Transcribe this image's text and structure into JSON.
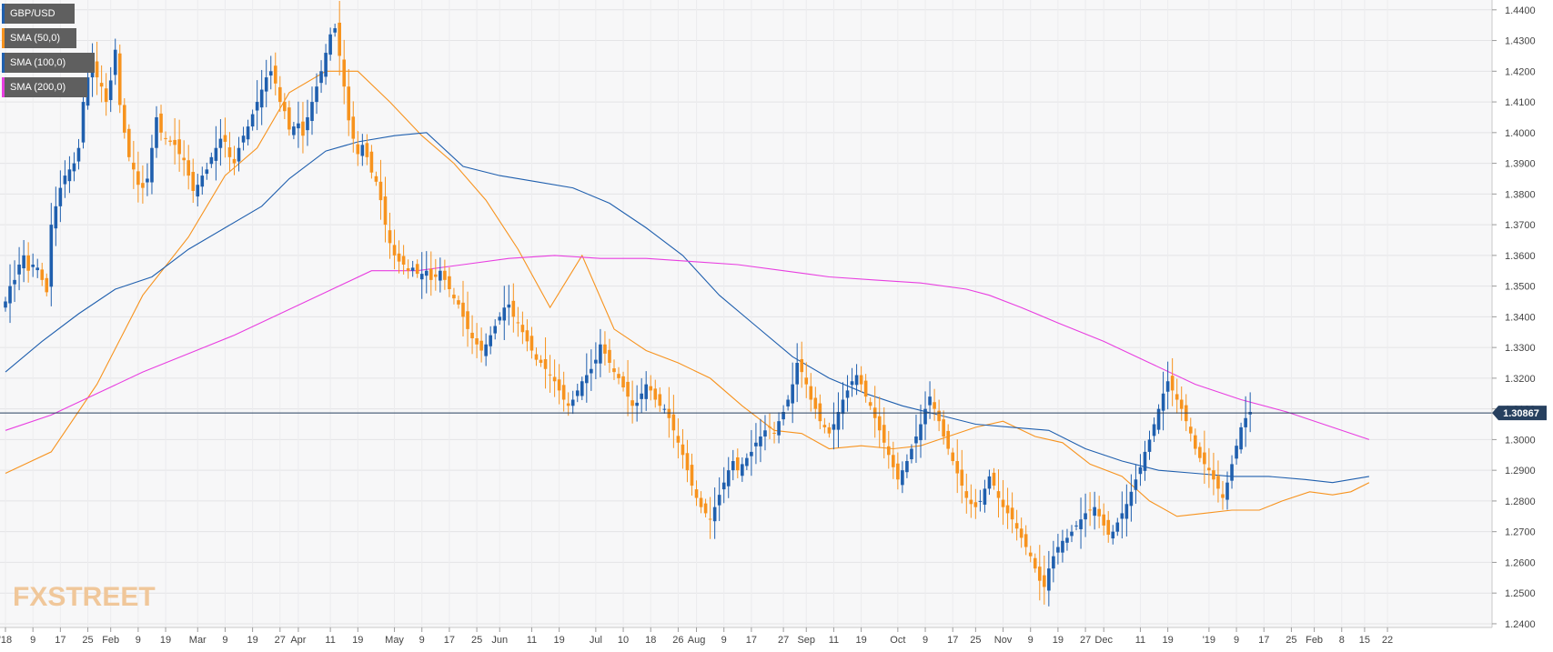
{
  "chart_data": {
    "type": "candlestick",
    "symbol": "GBP/USD",
    "ylim": [
      1.2388,
      1.4432
    ],
    "y_ticks": [
      "1.4400",
      "1.4300",
      "1.4200",
      "1.4100",
      "1.4000",
      "1.3900",
      "1.3800",
      "1.3700",
      "1.3600",
      "1.3500",
      "1.3400",
      "1.3300",
      "1.3200",
      "1.3100",
      "1.3000",
      "1.2900",
      "1.2800",
      "1.2700",
      "1.2600",
      "1.2500",
      "1.2400"
    ],
    "last_price": 1.30867,
    "last_price_label": "1.30867",
    "x_ticks": [
      {
        "i": 0,
        "label": "'18"
      },
      {
        "i": 6,
        "label": "9"
      },
      {
        "i": 12,
        "label": "17"
      },
      {
        "i": 18,
        "label": "25"
      },
      {
        "i": 23,
        "label": "Feb"
      },
      {
        "i": 29,
        "label": "9"
      },
      {
        "i": 35,
        "label": "19"
      },
      {
        "i": 42,
        "label": "Mar"
      },
      {
        "i": 48,
        "label": "9"
      },
      {
        "i": 54,
        "label": "19"
      },
      {
        "i": 60,
        "label": "27"
      },
      {
        "i": 64,
        "label": "Apr"
      },
      {
        "i": 71,
        "label": "11"
      },
      {
        "i": 77,
        "label": "19"
      },
      {
        "i": 85,
        "label": "May"
      },
      {
        "i": 91,
        "label": "9"
      },
      {
        "i": 97,
        "label": "17"
      },
      {
        "i": 103,
        "label": "25"
      },
      {
        "i": 108,
        "label": "Jun"
      },
      {
        "i": 115,
        "label": "11"
      },
      {
        "i": 121,
        "label": "19"
      },
      {
        "i": 129,
        "label": "Jul"
      },
      {
        "i": 135,
        "label": "10"
      },
      {
        "i": 141,
        "label": "18"
      },
      {
        "i": 147,
        "label": "26"
      },
      {
        "i": 151,
        "label": "Aug"
      },
      {
        "i": 157,
        "label": "9"
      },
      {
        "i": 163,
        "label": "17"
      },
      {
        "i": 170,
        "label": "27"
      },
      {
        "i": 175,
        "label": "Sep"
      },
      {
        "i": 181,
        "label": "11"
      },
      {
        "i": 187,
        "label": "19"
      },
      {
        "i": 195,
        "label": "Oct"
      },
      {
        "i": 201,
        "label": "9"
      },
      {
        "i": 207,
        "label": "17"
      },
      {
        "i": 212,
        "label": "25"
      },
      {
        "i": 218,
        "label": "Nov"
      },
      {
        "i": 224,
        "label": "9"
      },
      {
        "i": 230,
        "label": "19"
      },
      {
        "i": 236,
        "label": "27"
      },
      {
        "i": 240,
        "label": "Dec"
      },
      {
        "i": 248,
        "label": "11"
      },
      {
        "i": 254,
        "label": "19"
      },
      {
        "i": 263,
        "label": "'19"
      },
      {
        "i": 269,
        "label": "9"
      },
      {
        "i": 275,
        "label": "17"
      },
      {
        "i": 281,
        "label": "25"
      },
      {
        "i": 286,
        "label": "Feb"
      },
      {
        "i": 292,
        "label": "8"
      },
      {
        "i": 297,
        "label": "15"
      },
      {
        "i": 302,
        "label": "22"
      }
    ],
    "series": [
      {
        "name": "GBP/USD",
        "kind": "candles"
      },
      {
        "name": "SMA (50,0)",
        "color": "#f7931e",
        "points": [
          [
            0,
            1.289
          ],
          [
            10,
            1.296
          ],
          [
            20,
            1.318
          ],
          [
            30,
            1.347
          ],
          [
            40,
            1.366
          ],
          [
            48,
            1.386
          ],
          [
            55,
            1.395
          ],
          [
            62,
            1.413
          ],
          [
            70,
            1.42
          ],
          [
            77,
            1.42
          ],
          [
            84,
            1.41
          ],
          [
            91,
            1.399
          ],
          [
            98,
            1.39
          ],
          [
            105,
            1.378
          ],
          [
            112,
            1.362
          ],
          [
            119,
            1.343
          ],
          [
            126,
            1.36
          ],
          [
            133,
            1.336
          ],
          [
            140,
            1.329
          ],
          [
            147,
            1.325
          ],
          [
            154,
            1.32
          ],
          [
            161,
            1.311
          ],
          [
            168,
            1.303
          ],
          [
            174,
            1.302
          ],
          [
            180,
            1.297
          ],
          [
            187,
            1.298
          ],
          [
            194,
            1.297
          ],
          [
            200,
            1.298
          ],
          [
            206,
            1.301
          ],
          [
            212,
            1.304
          ],
          [
            218,
            1.306
          ],
          [
            225,
            1.301
          ],
          [
            231,
            1.299
          ],
          [
            237,
            1.292
          ],
          [
            244,
            1.288
          ],
          [
            250,
            1.28
          ],
          [
            256,
            1.275
          ],
          [
            262,
            1.276
          ],
          [
            268,
            1.277
          ],
          [
            274,
            1.277
          ],
          [
            279,
            1.28
          ],
          [
            285,
            1.283
          ],
          [
            290,
            1.282
          ],
          [
            294,
            1.283
          ],
          [
            298,
            1.286
          ]
        ]
      },
      {
        "name": "SMA (100,0)",
        "color": "#1f5fae",
        "points": [
          [
            0,
            1.322
          ],
          [
            8,
            1.332
          ],
          [
            16,
            1.341
          ],
          [
            24,
            1.349
          ],
          [
            32,
            1.353
          ],
          [
            40,
            1.362
          ],
          [
            48,
            1.369
          ],
          [
            56,
            1.376
          ],
          [
            62,
            1.385
          ],
          [
            70,
            1.394
          ],
          [
            77,
            1.397
          ],
          [
            85,
            1.399
          ],
          [
            92,
            1.4
          ],
          [
            100,
            1.389
          ],
          [
            108,
            1.386
          ],
          [
            116,
            1.384
          ],
          [
            124,
            1.382
          ],
          [
            132,
            1.377
          ],
          [
            140,
            1.369
          ],
          [
            148,
            1.36
          ],
          [
            156,
            1.347
          ],
          [
            164,
            1.337
          ],
          [
            172,
            1.327
          ],
          [
            180,
            1.32
          ],
          [
            188,
            1.315
          ],
          [
            196,
            1.311
          ],
          [
            204,
            1.308
          ],
          [
            212,
            1.305
          ],
          [
            220,
            1.304
          ],
          [
            228,
            1.303
          ],
          [
            236,
            1.297
          ],
          [
            244,
            1.293
          ],
          [
            252,
            1.29
          ],
          [
            260,
            1.289
          ],
          [
            268,
            1.288
          ],
          [
            276,
            1.288
          ],
          [
            284,
            1.287
          ],
          [
            290,
            1.286
          ],
          [
            298,
            1.288
          ]
        ]
      },
      {
        "name": "SMA (200,0)",
        "color": "#e83ee0",
        "points": [
          [
            0,
            1.303
          ],
          [
            10,
            1.308
          ],
          [
            20,
            1.315
          ],
          [
            30,
            1.322
          ],
          [
            40,
            1.328
          ],
          [
            50,
            1.334
          ],
          [
            60,
            1.341
          ],
          [
            70,
            1.348
          ],
          [
            80,
            1.355
          ],
          [
            90,
            1.355
          ],
          [
            100,
            1.357
          ],
          [
            110,
            1.359
          ],
          [
            120,
            1.36
          ],
          [
            130,
            1.359
          ],
          [
            140,
            1.359
          ],
          [
            150,
            1.358
          ],
          [
            160,
            1.357
          ],
          [
            170,
            1.355
          ],
          [
            180,
            1.353
          ],
          [
            190,
            1.352
          ],
          [
            200,
            1.351
          ],
          [
            210,
            1.349
          ],
          [
            215,
            1.347
          ],
          [
            222,
            1.343
          ],
          [
            230,
            1.338
          ],
          [
            240,
            1.332
          ],
          [
            250,
            1.325
          ],
          [
            260,
            1.318
          ],
          [
            270,
            1.313
          ],
          [
            280,
            1.309
          ],
          [
            290,
            1.304
          ],
          [
            298,
            1.3
          ]
        ]
      }
    ],
    "closes": [
      1.345,
      1.35,
      1.352,
      1.357,
      1.36,
      1.355,
      1.357,
      1.356,
      1.352,
      1.348,
      1.37,
      1.376,
      1.382,
      1.386,
      1.388,
      1.39,
      1.395,
      1.41,
      1.418,
      1.422,
      1.418,
      1.415,
      1.41,
      1.417,
      1.427,
      1.409,
      1.4,
      1.392,
      1.388,
      1.383,
      1.382,
      1.385,
      1.395,
      1.405,
      1.4,
      1.398,
      1.397,
      1.396,
      1.393,
      1.391,
      1.386,
      1.381,
      1.383,
      1.386,
      1.388,
      1.392,
      1.395,
      1.398,
      1.397,
      1.392,
      1.39,
      1.395,
      1.399,
      1.402,
      1.406,
      1.41,
      1.414,
      1.418,
      1.42,
      1.416,
      1.41,
      1.407,
      1.401,
      1.402,
      1.403,
      1.399,
      1.405,
      1.41,
      1.415,
      1.42,
      1.426,
      1.432,
      1.434,
      1.425,
      1.415,
      1.404,
      1.398,
      1.393,
      1.396,
      1.392,
      1.387,
      1.384,
      1.378,
      1.37,
      1.364,
      1.36,
      1.358,
      1.357,
      1.355,
      1.356,
      1.354,
      1.354,
      1.355,
      1.352,
      1.353,
      1.355,
      1.352,
      1.349,
      1.346,
      1.344,
      1.34,
      1.336,
      1.333,
      1.331,
      1.329,
      1.331,
      1.334,
      1.337,
      1.34,
      1.343,
      1.344,
      1.34,
      1.338,
      1.335,
      1.332,
      1.329,
      1.326,
      1.325,
      1.323,
      1.321,
      1.319,
      1.316,
      1.313,
      1.311,
      1.313,
      1.316,
      1.319,
      1.321,
      1.323,
      1.326,
      1.331,
      1.328,
      1.325,
      1.322,
      1.32,
      1.317,
      1.314,
      1.311,
      1.312,
      1.315,
      1.318,
      1.316,
      1.313,
      1.311,
      1.31,
      1.307,
      1.303,
      1.299,
      1.295,
      1.29,
      1.285,
      1.281,
      1.278,
      1.276,
      1.274,
      1.278,
      1.282,
      1.286,
      1.29,
      1.293,
      1.29,
      1.292,
      1.294,
      1.296,
      1.299,
      1.301,
      1.303,
      1.304,
      1.302,
      1.306,
      1.309,
      1.313,
      1.318,
      1.325,
      1.322,
      1.318,
      1.313,
      1.31,
      1.306,
      1.304,
      1.302,
      1.305,
      1.309,
      1.313,
      1.316,
      1.319,
      1.321,
      1.318,
      1.314,
      1.311,
      1.307,
      1.303,
      1.299,
      1.295,
      1.291,
      1.287,
      1.29,
      1.293,
      1.297,
      1.301,
      1.305,
      1.31,
      1.314,
      1.31,
      1.306,
      1.301,
      1.297,
      1.293,
      1.289,
      1.285,
      1.281,
      1.279,
      1.278,
      1.28,
      1.284,
      1.288,
      1.285,
      1.281,
      1.278,
      1.276,
      1.274,
      1.271,
      1.268,
      1.265,
      1.262,
      1.258,
      1.254,
      1.252,
      1.258,
      1.262,
      1.265,
      1.267,
      1.268,
      1.27,
      1.272,
      1.274,
      1.276,
      1.277,
      1.278,
      1.275,
      1.272,
      1.269,
      1.27,
      1.273,
      1.276,
      1.279,
      1.283,
      1.287,
      1.291,
      1.296,
      1.3,
      1.305,
      1.31,
      1.315,
      1.319,
      1.316,
      1.313,
      1.31,
      1.306,
      1.302,
      1.297,
      1.294,
      1.292,
      1.29,
      1.287,
      1.284,
      1.281,
      1.286,
      1.292,
      1.298,
      1.304,
      1.307,
      1.309
    ]
  }
}
